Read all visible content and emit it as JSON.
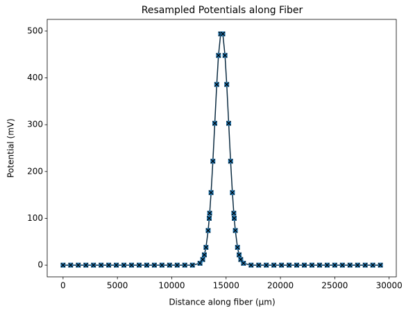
{
  "chart_data": {
    "type": "line",
    "title": "Resampled Potentials along Fiber",
    "x_label": "Distance along fiber (µm)",
    "y_label": "Potential (mV)",
    "x": [
      0,
      700,
      1400,
      2100,
      2800,
      3500,
      4200,
      4900,
      5600,
      6300,
      7000,
      7700,
      8400,
      9100,
      9800,
      10500,
      11200,
      11900,
      12600,
      12850,
      13000,
      13150,
      13350,
      13450,
      13490,
      13620,
      13785,
      13960,
      14140,
      14300,
      14500,
      14700,
      14900,
      15060,
      15240,
      15415,
      15580,
      15710,
      15750,
      15850,
      16050,
      16200,
      16350,
      16600,
      17300,
      18000,
      18700,
      19400,
      20100,
      20800,
      21500,
      22200,
      22900,
      23600,
      24300,
      25000,
      25700,
      26400,
      27100,
      27800,
      28500,
      29200
    ],
    "series": [
      {
        "color": "#1f77b4",
        "line_color": "#0a2a40",
        "cross_color": "#000000",
        "values": [
          0,
          0,
          0,
          0,
          0,
          0,
          0,
          0,
          0,
          0,
          0,
          0,
          0,
          0,
          0,
          0,
          0,
          0,
          4,
          12,
          22,
          38,
          74,
          100,
          111,
          155,
          222,
          303,
          386,
          448,
          494,
          494,
          448,
          386,
          303,
          222,
          155,
          111,
          100,
          74,
          38,
          22,
          12,
          4,
          0,
          0,
          0,
          0,
          0,
          0,
          0,
          0,
          0,
          0,
          0,
          0,
          0,
          0,
          0,
          0,
          0,
          0
        ]
      }
    ],
    "xlim": [
      -1460,
      30660
    ],
    "ylim": [
      -25,
      525
    ],
    "xticks": [
      0,
      5000,
      10000,
      15000,
      20000,
      25000,
      30000
    ],
    "yticks": [
      0,
      100,
      200,
      300,
      400,
      500
    ]
  }
}
